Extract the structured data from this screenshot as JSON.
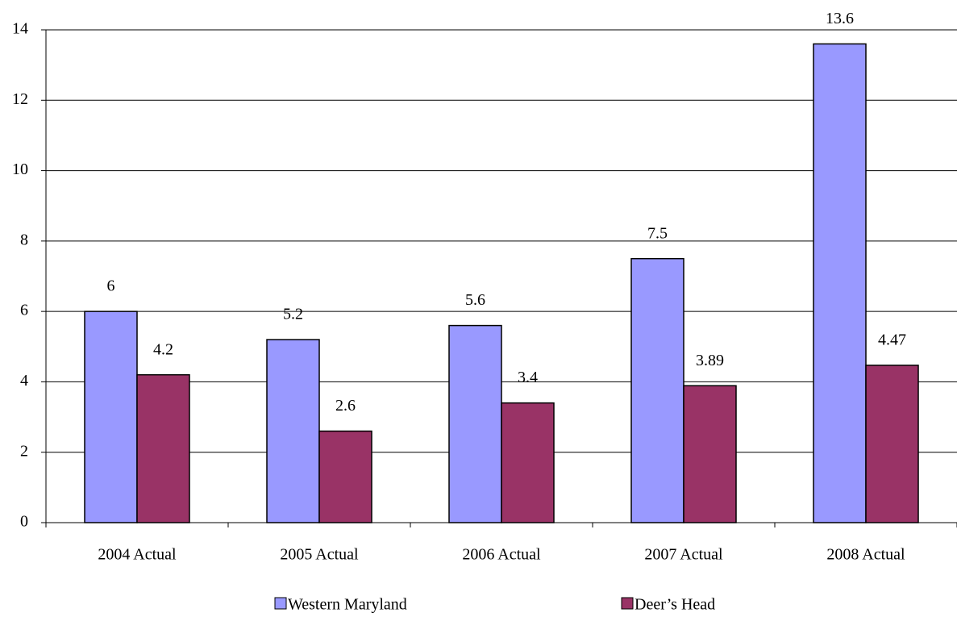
{
  "chart_data": {
    "type": "bar",
    "categories": [
      "2004 Actual",
      "2005 Actual",
      "2006 Actual",
      "2007 Actual",
      "2008 Actual"
    ],
    "series": [
      {
        "name": "Western Maryland",
        "color": "#9999ff",
        "values": [
          6,
          5.2,
          5.6,
          7.5,
          13.6
        ]
      },
      {
        "name": "Deer’s Head",
        "color": "#993366",
        "values": [
          4.2,
          2.6,
          3.4,
          3.89,
          4.47
        ]
      }
    ],
    "ylim": [
      0,
      14
    ],
    "yticks": [
      0,
      2,
      4,
      6,
      8,
      10,
      12,
      14
    ],
    "grid": true,
    "legend": "bottom"
  }
}
